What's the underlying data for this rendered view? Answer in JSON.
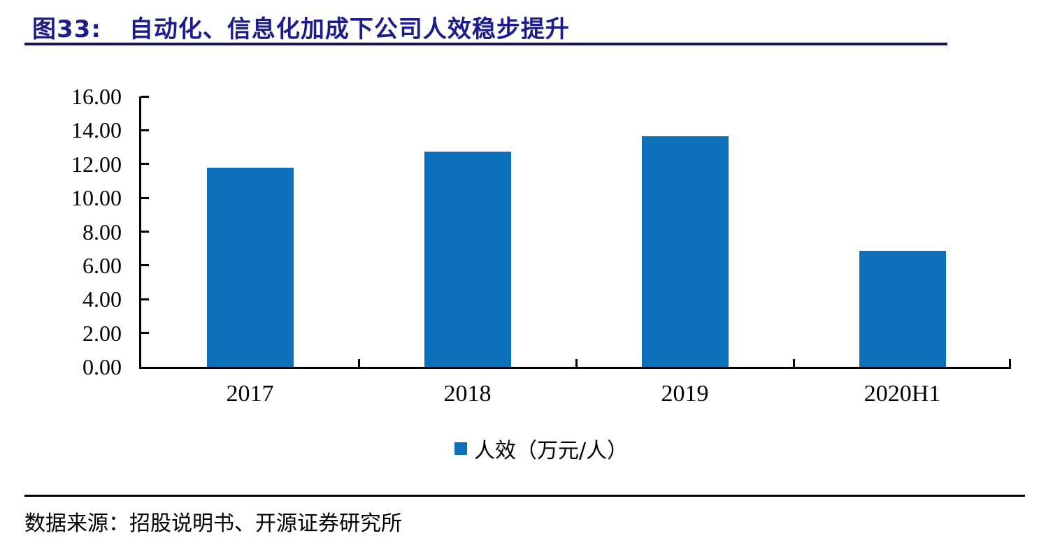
{
  "header": {
    "figure_label": "图33:",
    "title": "自动化、信息化加成下公司人效稳步提升"
  },
  "chart_data": {
    "type": "bar",
    "title": "自动化、信息化加成下公司人效稳步提升",
    "categories": [
      "2017",
      "2018",
      "2019",
      "2020H1"
    ],
    "values": [
      11.78,
      12.72,
      13.63,
      6.85
    ],
    "series_name": "人效（万元/人）",
    "xlabel": "",
    "ylabel": "",
    "ylim": [
      0,
      16
    ],
    "ytick_step": 2,
    "ytick_labels": [
      "16.00",
      "14.00",
      "12.00",
      "10.00",
      "8.00",
      "6.00",
      "4.00",
      "2.00",
      "0.00"
    ],
    "grid": false,
    "legend": {
      "label": "人效（万元/人）",
      "position": "bottom-center",
      "marker": "square"
    },
    "bar_color": "#0c71ba",
    "axis_color": "#000000"
  },
  "footer": {
    "source": "数据来源：招股说明书、开源证券研究所"
  },
  "colors": {
    "title_text": "#1c1c8c",
    "title_rule": "#15155c",
    "bar": "#0c71ba",
    "axis": "#000000"
  }
}
